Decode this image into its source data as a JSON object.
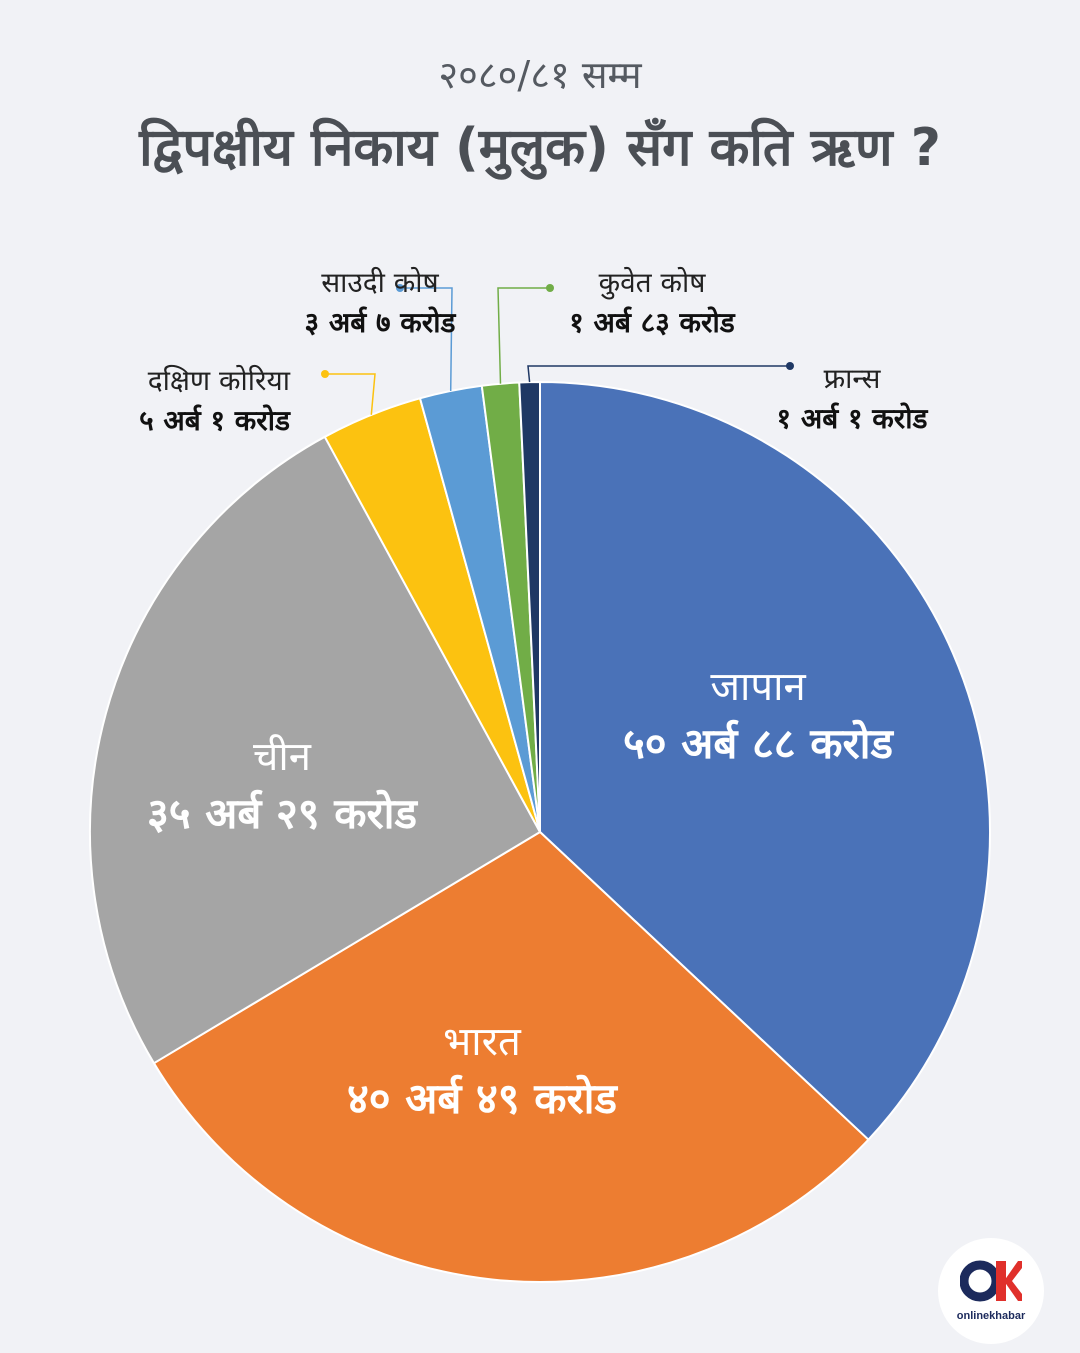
{
  "header": {
    "subtitle": "२०८०/८१ सम्म",
    "title": "द्विपक्षीय निकाय (मुलुक) सँग कति ऋण ?"
  },
  "chart_data": {
    "type": "pie",
    "slices": [
      {
        "name": "जापान",
        "value": 50.88,
        "label": "५० अर्ब ८८ करोड",
        "color": "#4a72b8"
      },
      {
        "name": "भारत",
        "value": 40.49,
        "label": "४० अर्ब ४९ करोड",
        "color": "#ed7d31"
      },
      {
        "name": "चीन",
        "value": 35.29,
        "label": "३५ अर्ब २९ करोड",
        "color": "#a5a5a5"
      },
      {
        "name": "दक्षिण कोरिया",
        "value": 5.01,
        "label": "५ अर्ब १ करोड",
        "color": "#fcc210"
      },
      {
        "name": "साउदी कोष",
        "value": 3.07,
        "label": "३ अर्ब ७ करोड",
        "color": "#5b9bd5"
      },
      {
        "name": "कुवेत कोष",
        "value": 1.83,
        "label": "१ अर्ब ८३ करोड",
        "color": "#71ad47"
      },
      {
        "name": "फ्रान्स",
        "value": 1.01,
        "label": "१ अर्ब १ करोड",
        "color": "#1f3864"
      }
    ]
  },
  "logo": {
    "text": "onlinekhabar",
    "accent_color": "#e0302b",
    "brand_color": "#1c2a5c"
  }
}
